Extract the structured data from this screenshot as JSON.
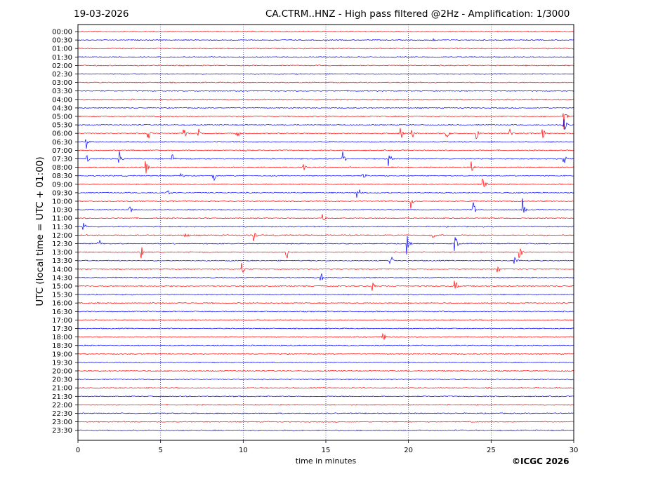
{
  "header": {
    "date": "19-03-2026",
    "title": "CA.CTRM..HNZ - High pass filtered @2Hz - Amplification: 1/3000"
  },
  "footer": {
    "credit": "©ICGC 2026"
  },
  "chart_data": {
    "type": "line",
    "title": "CA.CTRM..HNZ - High pass filtered @2Hz - Amplification: 1/3000",
    "xlabel": "time in minutes",
    "ylabel": "UTC (local time = UTC + 01:00)",
    "xlim": [
      0,
      30
    ],
    "xticks": [
      0,
      5,
      10,
      15,
      20,
      25,
      30
    ],
    "vertical_gridlines_at": [
      5,
      10,
      15,
      20,
      25
    ],
    "rows": [
      "00:00",
      "00:30",
      "01:00",
      "01:30",
      "02:00",
      "02:30",
      "03:00",
      "03:30",
      "04:00",
      "04:30",
      "05:00",
      "05:30",
      "06:00",
      "06:30",
      "07:00",
      "07:30",
      "08:00",
      "08:30",
      "09:00",
      "09:30",
      "10:00",
      "10:30",
      "11:00",
      "11:30",
      "12:00",
      "12:30",
      "13:00",
      "13:30",
      "14:00",
      "14:30",
      "15:00",
      "15:30",
      "16:00",
      "16:30",
      "17:00",
      "17:30",
      "18:00",
      "18:30",
      "19:00",
      "19:30",
      "20:00",
      "20:30",
      "21:00",
      "21:30",
      "22:00",
      "22:30",
      "23:00",
      "23:30"
    ],
    "row_colors": [
      "#ff0000",
      "#0000ff"
    ],
    "events": [
      {
        "row": "00:30",
        "minute": 21.5,
        "amplitude": 0.3
      },
      {
        "row": "05:00",
        "minute": 29.4,
        "amplitude": 2.0
      },
      {
        "row": "05:30",
        "minute": 29.4,
        "amplitude": 2.0
      },
      {
        "row": "06:00",
        "minute": 4.2,
        "amplitude": 1.6
      },
      {
        "row": "06:00",
        "minute": 6.4,
        "amplitude": 1.2
      },
      {
        "row": "06:00",
        "minute": 7.3,
        "amplitude": 1.2
      },
      {
        "row": "06:00",
        "minute": 9.6,
        "amplitude": 1.5
      },
      {
        "row": "06:00",
        "minute": 19.5,
        "amplitude": 1.4
      },
      {
        "row": "06:00",
        "minute": 20.2,
        "amplitude": 1.2
      },
      {
        "row": "06:00",
        "minute": 22.3,
        "amplitude": 1.2
      },
      {
        "row": "06:00",
        "minute": 24.1,
        "amplitude": 1.4
      },
      {
        "row": "06:00",
        "minute": 26.1,
        "amplitude": 1.2
      },
      {
        "row": "06:00",
        "minute": 28.1,
        "amplitude": 1.6
      },
      {
        "row": "06:30",
        "minute": 0.5,
        "amplitude": 1.2
      },
      {
        "row": "07:00",
        "minute": 10.1,
        "amplitude": 0.6
      },
      {
        "row": "07:30",
        "minute": 0.5,
        "amplitude": 1.0
      },
      {
        "row": "07:30",
        "minute": 2.5,
        "amplitude": 1.5
      },
      {
        "row": "07:30",
        "minute": 5.7,
        "amplitude": 1.2
      },
      {
        "row": "07:30",
        "minute": 16.0,
        "amplitude": 1.2
      },
      {
        "row": "07:30",
        "minute": 18.8,
        "amplitude": 1.6
      },
      {
        "row": "07:30",
        "minute": 29.4,
        "amplitude": 1.4
      },
      {
        "row": "08:00",
        "minute": 4.1,
        "amplitude": 1.6
      },
      {
        "row": "08:00",
        "minute": 13.6,
        "amplitude": 1.4
      },
      {
        "row": "08:00",
        "minute": 23.8,
        "amplitude": 1.3
      },
      {
        "row": "08:30",
        "minute": 6.2,
        "amplitude": 1.2
      },
      {
        "row": "08:30",
        "minute": 8.2,
        "amplitude": 1.2
      },
      {
        "row": "08:30",
        "minute": 17.2,
        "amplitude": 1.6
      },
      {
        "row": "09:00",
        "minute": 24.5,
        "amplitude": 1.6
      },
      {
        "row": "09:30",
        "minute": 5.4,
        "amplitude": 1.2
      },
      {
        "row": "09:30",
        "minute": 16.9,
        "amplitude": 1.5
      },
      {
        "row": "10:00",
        "minute": 20.1,
        "amplitude": 1.4
      },
      {
        "row": "10:30",
        "minute": 3.1,
        "amplitude": 1.2
      },
      {
        "row": "10:30",
        "minute": 23.9,
        "amplitude": 1.6
      },
      {
        "row": "10:30",
        "minute": 26.9,
        "amplitude": 1.4
      },
      {
        "row": "11:00",
        "minute": 14.8,
        "amplitude": 1.2
      },
      {
        "row": "11:30",
        "minute": 0.3,
        "amplitude": 1.0
      },
      {
        "row": "12:00",
        "minute": 6.5,
        "amplitude": 1.2
      },
      {
        "row": "12:00",
        "minute": 10.6,
        "amplitude": 1.6
      },
      {
        "row": "12:00",
        "minute": 21.5,
        "amplitude": 1.2
      },
      {
        "row": "12:30",
        "minute": 1.2,
        "amplitude": 1.2
      },
      {
        "row": "12:30",
        "minute": 19.9,
        "amplitude": 2.0
      },
      {
        "row": "12:30",
        "minute": 22.8,
        "amplitude": 1.8
      },
      {
        "row": "13:00",
        "minute": 3.8,
        "amplitude": 1.2
      },
      {
        "row": "13:00",
        "minute": 12.6,
        "amplitude": 1.4
      },
      {
        "row": "13:00",
        "minute": 26.7,
        "amplitude": 1.4
      },
      {
        "row": "13:30",
        "minute": 18.9,
        "amplitude": 1.2
      },
      {
        "row": "13:30",
        "minute": 26.4,
        "amplitude": 1.4
      },
      {
        "row": "14:00",
        "minute": 9.9,
        "amplitude": 1.4
      },
      {
        "row": "14:00",
        "minute": 25.4,
        "amplitude": 1.2
      },
      {
        "row": "14:30",
        "minute": 14.7,
        "amplitude": 1.0
      },
      {
        "row": "15:00",
        "minute": 17.8,
        "amplitude": 0.8
      },
      {
        "row": "15:00",
        "minute": 22.8,
        "amplitude": 1.5
      },
      {
        "row": "16:00",
        "minute": 1.2,
        "amplitude": 0.2
      },
      {
        "row": "18:00",
        "minute": 18.4,
        "amplitude": 1.8
      },
      {
        "row": "20:30",
        "minute": 26.3,
        "amplitude": 0.2
      },
      {
        "row": "23:30",
        "minute": 13.0,
        "amplitude": 0.3
      }
    ]
  }
}
